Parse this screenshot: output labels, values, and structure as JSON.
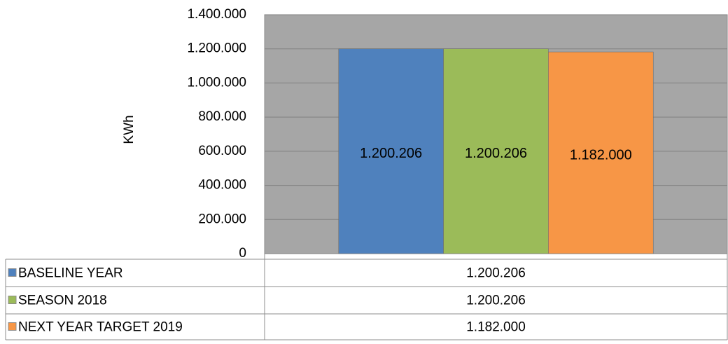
{
  "chart_data": {
    "type": "bar",
    "y_label": "KWh",
    "categories": [
      null
    ],
    "series": [
      {
        "name": "BASELINE YEAR",
        "color": "#4f81bd",
        "values": [
          1200206
        ],
        "value_labels": [
          "1.200.206"
        ]
      },
      {
        "name": "SEASON 2018",
        "color": "#9bbb59",
        "values": [
          1200206
        ],
        "value_labels": [
          "1.200.206"
        ]
      },
      {
        "name": "NEXT YEAR TARGET 2019",
        "color": "#f79646",
        "values": [
          1182000
        ],
        "value_labels": [
          "1.182.000"
        ]
      }
    ],
    "ylim": [
      0,
      1400000
    ],
    "yticks": [
      0,
      {
        "value": 200000,
        "label": "200.000"
      },
      {
        "value": 400000,
        "label": "400.000"
      },
      {
        "value": 600000,
        "label": "600.000"
      },
      {
        "value": 800000,
        "label": "800.000"
      },
      {
        "value": 1000000,
        "label": "1.000.000"
      },
      {
        "value": 1200000,
        "label": "1.200.000"
      },
      {
        "value": 1400000,
        "label": "1.400.000"
      }
    ],
    "grid": true,
    "plot_background": "#a6a6a6",
    "data_table": true
  }
}
